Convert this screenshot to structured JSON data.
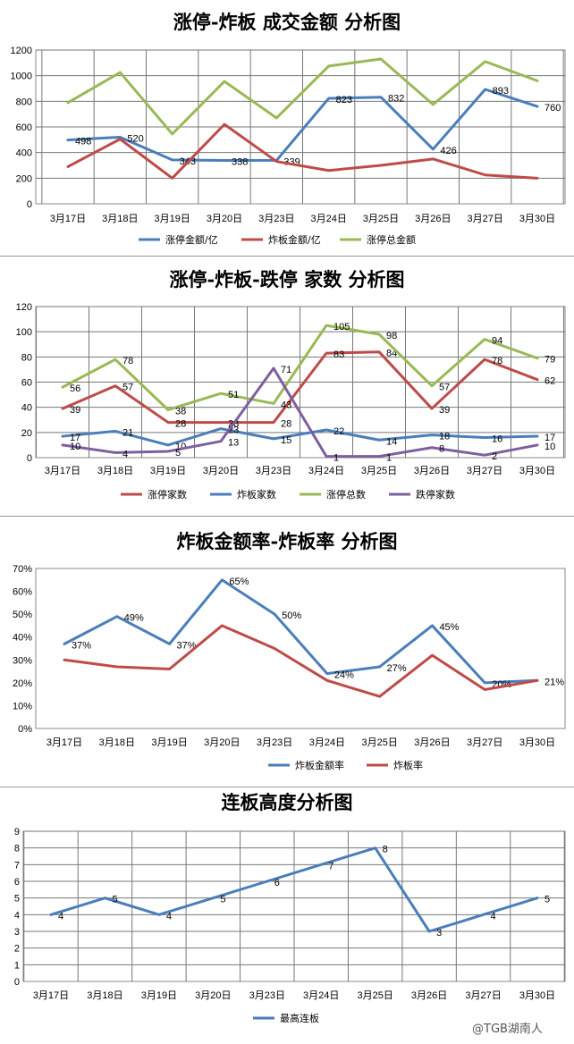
{
  "watermark": "@TGB湖南人",
  "chart_data": [
    {
      "type": "line",
      "title": "涨停-炸板 成交金额 分析图",
      "categories": [
        "3月17日",
        "3月18日",
        "3月19日",
        "3月20日",
        "3月23日",
        "3月24日",
        "3月25日",
        "3月26日",
        "3月27日",
        "3月30日"
      ],
      "ylim": [
        0,
        1200
      ],
      "yticks": [
        0,
        200,
        400,
        600,
        800,
        1000,
        1200
      ],
      "grid": true,
      "legend_position": "bottom",
      "series": [
        {
          "name": "涨停金额/亿",
          "color": "#4a7ebb",
          "values": [
            498,
            520,
            343,
            338,
            339,
            823,
            832,
            426,
            893,
            760
          ],
          "labels": [
            "498",
            "520",
            "343",
            "338",
            "339",
            "823",
            "832",
            "426",
            "893",
            "760"
          ]
        },
        {
          "name": "炸板金额/亿",
          "color": "#be4b48",
          "values": [
            290,
            505,
            200,
            620,
            330,
            260,
            300,
            350,
            225,
            200
          ],
          "labels": []
        },
        {
          "name": "涨停总金额",
          "color": "#98b954",
          "values": [
            790,
            1025,
            545,
            955,
            670,
            1075,
            1130,
            775,
            1110,
            960
          ],
          "labels": []
        }
      ]
    },
    {
      "type": "line",
      "title": "涨停-炸板-跌停 家数 分析图",
      "categories": [
        "3月17日",
        "3月18日",
        "3月19日",
        "3月20日",
        "3月23日",
        "3月24日",
        "3月25日",
        "3月26日",
        "3月27日",
        "3月30日"
      ],
      "ylim": [
        0,
        120
      ],
      "yticks": [
        0,
        20,
        40,
        60,
        80,
        100,
        120
      ],
      "grid": true,
      "legend_position": "bottom",
      "series": [
        {
          "name": "涨停家数",
          "color": "#be4b48",
          "values": [
            39,
            57,
            28,
            28,
            28,
            83,
            84,
            39,
            78,
            62
          ],
          "labels": [
            "39",
            "57",
            "28",
            "28",
            "28",
            "83",
            "84",
            "39",
            "78",
            "62"
          ]
        },
        {
          "name": "炸板家数",
          "color": "#4a7ebb",
          "values": [
            17,
            21,
            10,
            23,
            15,
            22,
            14,
            18,
            16,
            17
          ],
          "labels": [
            "17",
            "21",
            "10",
            "23",
            "15",
            "22",
            "14",
            "18",
            "16",
            "17"
          ]
        },
        {
          "name": "涨停总数",
          "color": "#98b954",
          "values": [
            56,
            78,
            38,
            51,
            43,
            105,
            98,
            57,
            94,
            79
          ],
          "labels": [
            "56",
            "78",
            "38",
            "51",
            "43",
            "105",
            "98",
            "57",
            "94",
            "79"
          ]
        },
        {
          "name": "跌停家数",
          "color": "#7d5fa0",
          "values": [
            10,
            4,
            5,
            13,
            71,
            1,
            1,
            8,
            2,
            10
          ],
          "labels": [
            "10",
            "4",
            "5",
            "13",
            "71",
            "1",
            "1",
            "8",
            "2",
            "10"
          ]
        }
      ]
    },
    {
      "type": "line",
      "title": "炸板金额率-炸板率 分析图",
      "categories": [
        "3月17日",
        "3月18日",
        "3月19日",
        "3月20日",
        "3月23日",
        "3月24日",
        "3月25日",
        "3月26日",
        "3月27日",
        "3月30日"
      ],
      "ylim": [
        0,
        70
      ],
      "yticks": [
        0,
        10,
        20,
        30,
        40,
        50,
        60,
        70
      ],
      "ytick_labels": [
        "0%",
        "10%",
        "20%",
        "30%",
        "40%",
        "50%",
        "60%",
        "70%"
      ],
      "grid": false,
      "legend_position": "bottom",
      "series": [
        {
          "name": "炸板金额率",
          "color": "#4a7ebb",
          "values": [
            37,
            49,
            37,
            65,
            50,
            24,
            27,
            45,
            20,
            21
          ],
          "labels": [
            "37%",
            "49%",
            "37%",
            "65%",
            "50%",
            "24%",
            "27%",
            "45%",
            "20%",
            "21%"
          ]
        },
        {
          "name": "炸板率",
          "color": "#be4b48",
          "values": [
            30,
            27,
            26,
            45,
            35,
            21,
            14,
            32,
            17,
            21
          ],
          "labels": []
        }
      ]
    },
    {
      "type": "line",
      "title": "连板高度分析图",
      "categories": [
        "3月17日",
        "3月18日",
        "3月19日",
        "3月20日",
        "3月23日",
        "3月24日",
        "3月25日",
        "3月26日",
        "3月27日",
        "3月30日"
      ],
      "ylim": [
        0,
        9
      ],
      "yticks": [
        0,
        1,
        2,
        3,
        4,
        5,
        6,
        7,
        8,
        9
      ],
      "grid": true,
      "legend_position": "bottom",
      "series": [
        {
          "name": "最高连板",
          "color": "#4a7ebb",
          "values": [
            4,
            5,
            4,
            5,
            6,
            7,
            8,
            3,
            4,
            5
          ],
          "labels": [
            "4",
            "5",
            "4",
            "5",
            "6",
            "7",
            "8",
            "3",
            "4",
            "5"
          ]
        }
      ]
    }
  ]
}
